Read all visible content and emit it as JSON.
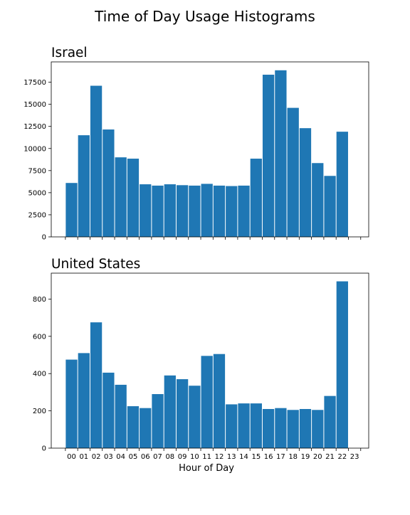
{
  "figure": {
    "title": "Time of Day Usage Histograms"
  },
  "chart_data": [
    {
      "type": "bar",
      "title": "Israel",
      "xlabel": "",
      "ylabel": "",
      "categories": [
        "00",
        "01",
        "02",
        "03",
        "04",
        "05",
        "06",
        "07",
        "08",
        "09",
        "10",
        "11",
        "12",
        "13",
        "14",
        "15",
        "16",
        "17",
        "18",
        "19",
        "20",
        "21",
        "22",
        "23"
      ],
      "values": [
        6100,
        11500,
        17100,
        12150,
        9000,
        8850,
        5950,
        5800,
        5950,
        5850,
        5800,
        6000,
        5800,
        5750,
        5800,
        8850,
        18350,
        18850,
        14600,
        12300,
        8350,
        6900,
        11900,
        0
      ],
      "ylim": [
        0,
        19800
      ],
      "yticks": [
        0,
        2500,
        5000,
        7500,
        10000,
        12500,
        15000,
        17500
      ],
      "ytick_labels": [
        "0",
        "2500",
        "5000",
        "7500",
        "10000",
        "12500",
        "15000",
        "17500"
      ],
      "show_xtick_labels": false,
      "grid": false,
      "bar_color": "#1f77b4"
    },
    {
      "type": "bar",
      "title": "United States",
      "xlabel": "Hour of Day",
      "ylabel": "",
      "categories": [
        "00",
        "01",
        "02",
        "03",
        "04",
        "05",
        "06",
        "07",
        "08",
        "09",
        "10",
        "11",
        "12",
        "13",
        "14",
        "15",
        "16",
        "17",
        "18",
        "19",
        "20",
        "21",
        "22",
        "23"
      ],
      "values": [
        475,
        510,
        675,
        405,
        340,
        225,
        215,
        290,
        390,
        370,
        335,
        495,
        505,
        235,
        240,
        240,
        210,
        215,
        205,
        210,
        205,
        280,
        895,
        0
      ],
      "ylim": [
        0,
        939
      ],
      "yticks": [
        0,
        200,
        400,
        600,
        800
      ],
      "ytick_labels": [
        "0",
        "200",
        "400",
        "600",
        "800"
      ],
      "show_xtick_labels": true,
      "grid": false,
      "bar_color": "#1f77b4"
    }
  ]
}
